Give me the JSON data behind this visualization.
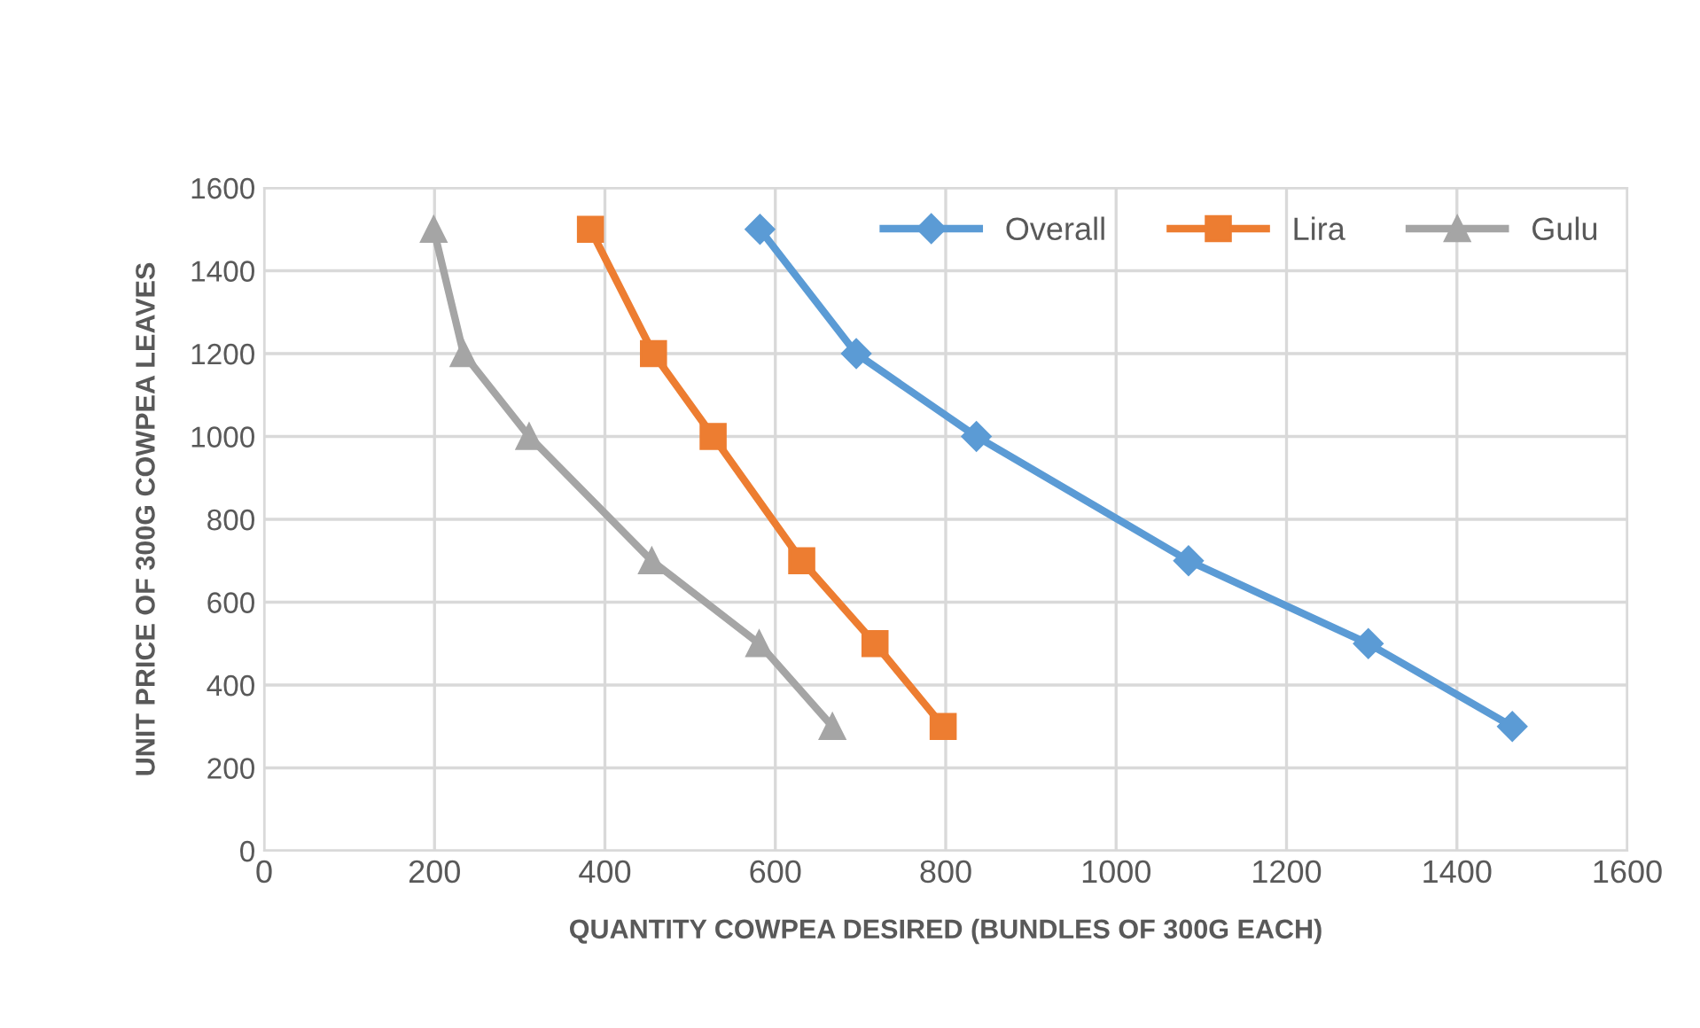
{
  "chart_data": {
    "type": "line",
    "xlabel": "QUANTITY COWPEA DESIRED (BUNDLES OF 300G EACH)",
    "ylabel": "UNIT PRICE OF 300G COWPEA LEAVES",
    "series": [
      {
        "name": "Overall",
        "color": "#5b9bd5",
        "marker": "diamond",
        "x": [
          582,
          695,
          836,
          1085,
          1296,
          1465
        ],
        "values": [
          1500,
          1200,
          1000,
          700,
          500,
          300
        ]
      },
      {
        "name": "Lira",
        "color": "#ed7d31",
        "marker": "square",
        "x": [
          383,
          457,
          527,
          631,
          717,
          797
        ],
        "values": [
          1500,
          1200,
          1000,
          700,
          500,
          300
        ]
      },
      {
        "name": "Gulu",
        "color": "#a5a5a5",
        "marker": "triangle",
        "x": [
          199,
          234,
          311,
          455,
          581,
          667
        ],
        "values": [
          1500,
          1200,
          1000,
          700,
          500,
          300
        ]
      }
    ],
    "xlim": [
      0,
      1600
    ],
    "xticks": [
      0,
      200,
      400,
      600,
      800,
      1000,
      1200,
      1400,
      1600
    ],
    "ylim": [
      0,
      1600
    ],
    "yticks": [
      0,
      200,
      400,
      600,
      800,
      1000,
      1200,
      1400,
      1600
    ],
    "grid": true,
    "legend": "top right",
    "line_style": "solid"
  }
}
